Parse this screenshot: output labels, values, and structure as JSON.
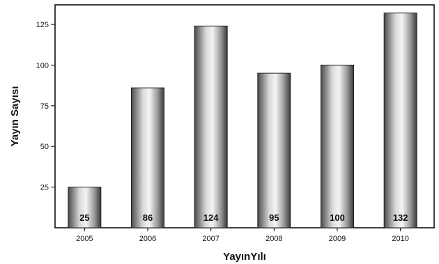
{
  "chart_data": {
    "type": "bar",
    "title": "",
    "xlabel": "YayınYılı",
    "ylabel": "Yayın Sayısı",
    "categories": [
      "2005",
      "2006",
      "2007",
      "2008",
      "2009",
      "2010"
    ],
    "values": [
      25,
      86,
      124,
      95,
      100,
      132
    ],
    "data_labels": [
      "25",
      "86",
      "124",
      "95",
      "100",
      "132"
    ],
    "yticks": [
      "25",
      "50",
      "75",
      "100",
      "125"
    ],
    "ylim": [
      0,
      137
    ],
    "grid": false,
    "legend": "none",
    "colors": {
      "bar_dark": "#4a4a4a",
      "bar_light": "#f4f4f4",
      "axis": "#000000"
    }
  }
}
